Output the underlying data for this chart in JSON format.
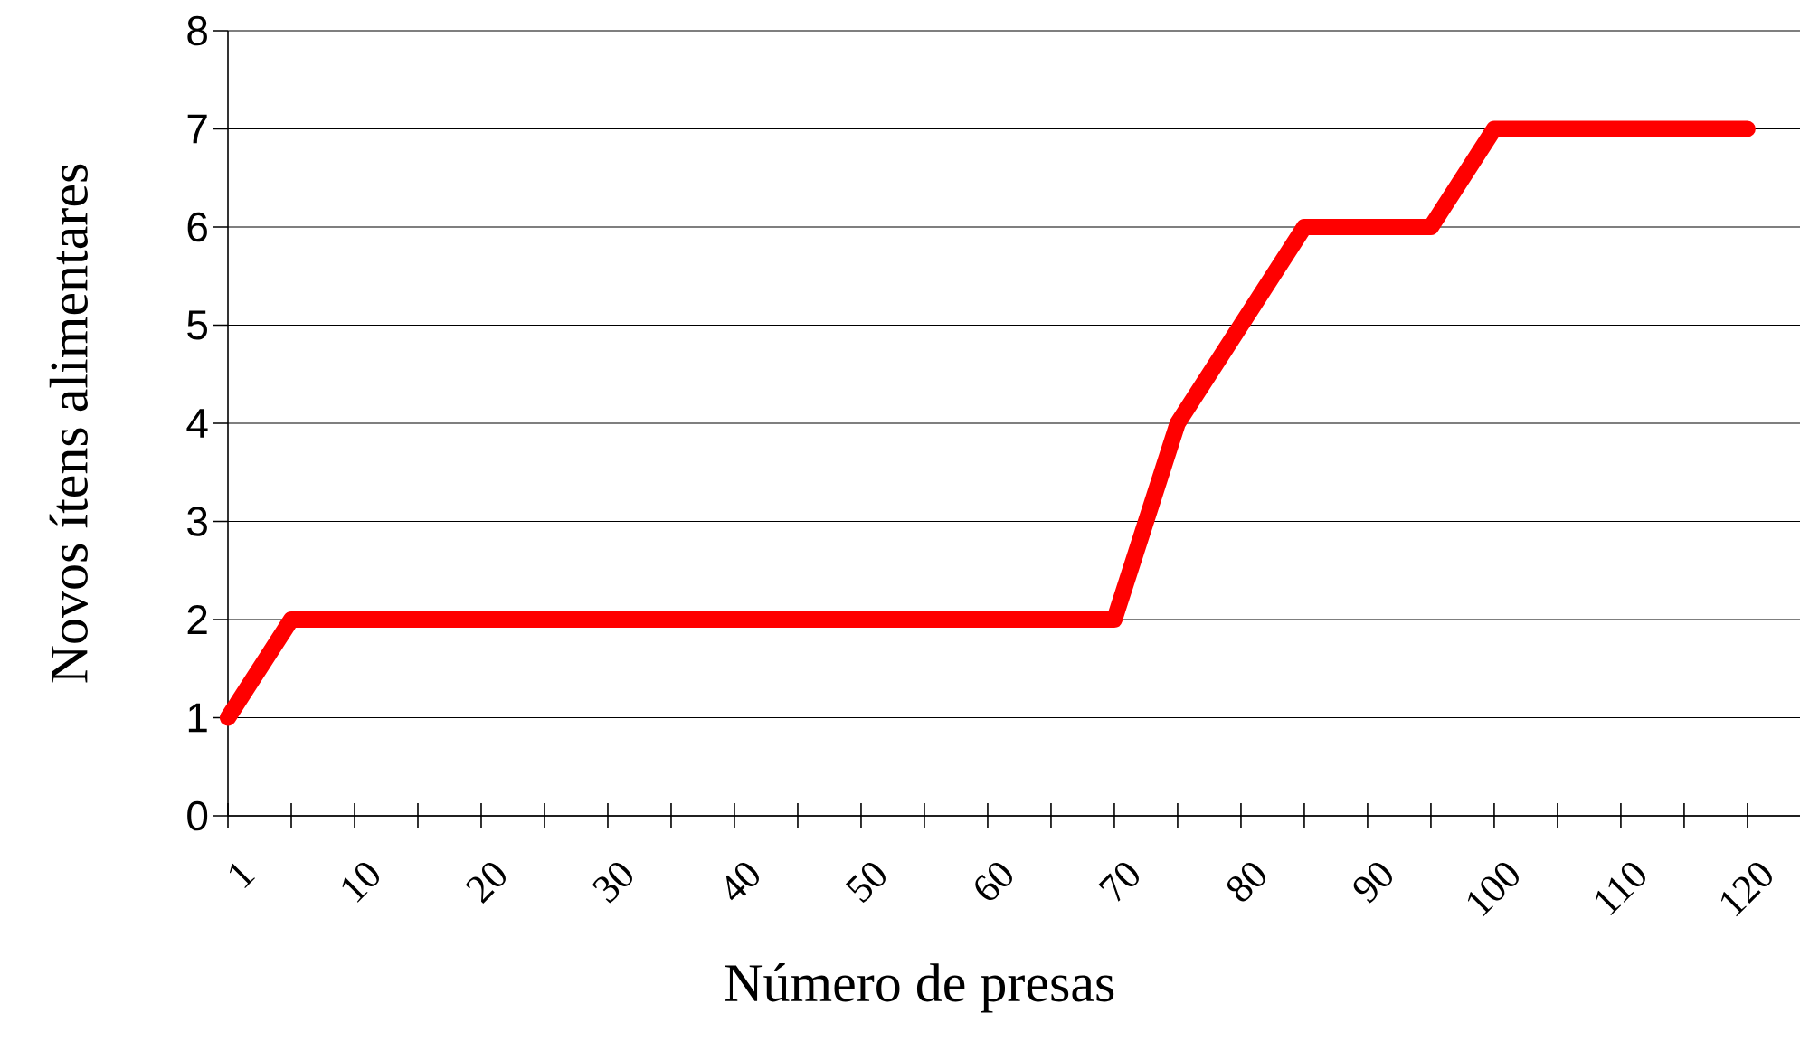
{
  "chart_data": {
    "type": "line",
    "xlabel": "Número de presas",
    "ylabel": "Novos ítens alimentares",
    "categories": [
      "1",
      null,
      "10",
      null,
      "20",
      null,
      "30",
      null,
      "40",
      null,
      "50",
      null,
      "60",
      null,
      "70",
      null,
      "80",
      null,
      "90",
      null,
      "100",
      null,
      "110",
      null,
      "120"
    ],
    "values": [
      1,
      2,
      2,
      2,
      2,
      2,
      2,
      2,
      2,
      2,
      2,
      2,
      2,
      2,
      2,
      4,
      5,
      6,
      6,
      6,
      7,
      7,
      7,
      7,
      7
    ],
    "color": "#ff0000",
    "ylim": [
      0,
      8
    ],
    "yticks": [
      0,
      1,
      2,
      3,
      4,
      5,
      6,
      7,
      8
    ],
    "grid": "y"
  }
}
